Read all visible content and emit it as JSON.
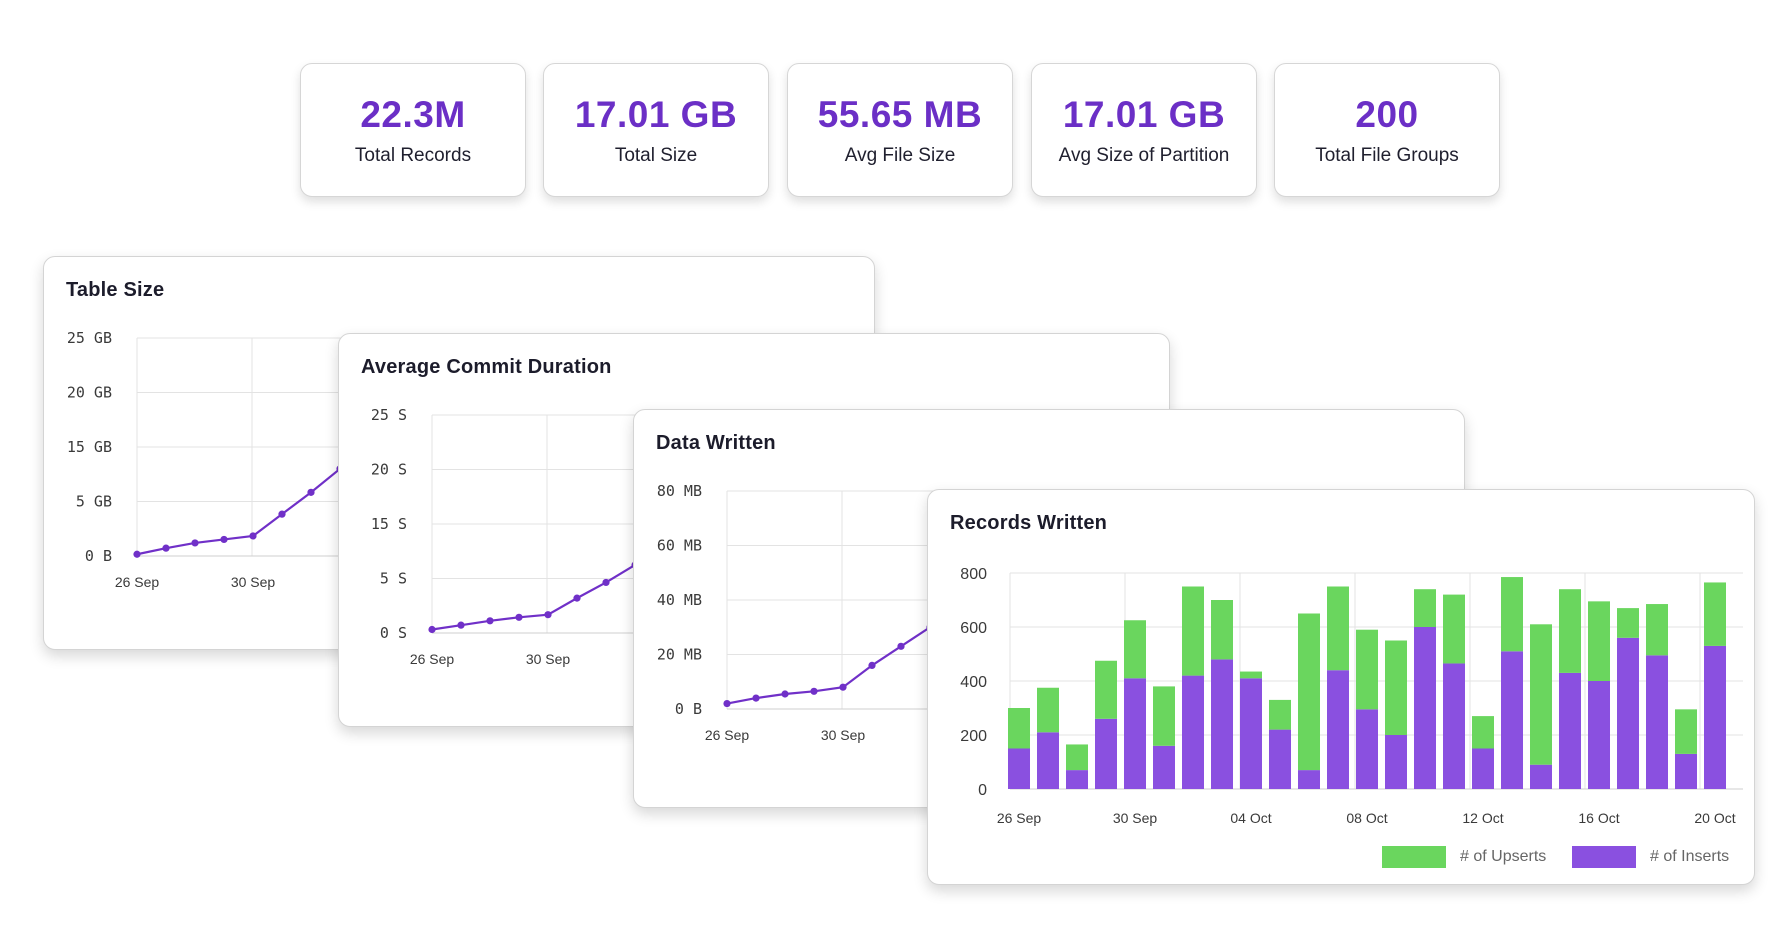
{
  "stats": [
    {
      "value": "22.3M",
      "label": "Total Records"
    },
    {
      "value": "17.01 GB",
      "label": "Total Size"
    },
    {
      "value": "55.65 MB",
      "label": "Avg File Size"
    },
    {
      "value": "17.01 GB",
      "label": "Avg Size of Partition"
    },
    {
      "value": "200",
      "label": "Total File Groups"
    }
  ],
  "colors": {
    "accent": "#6b2fc6",
    "line": "#7030c8",
    "upserts": "#6ad65e",
    "inserts": "#8a50e0"
  },
  "chart_data": [
    {
      "type": "line",
      "title": "Table Size",
      "y_ticks": [
        "0 B",
        "5 GB",
        "15 GB",
        "20 GB",
        "25 GB"
      ],
      "x_ticks": [
        "26 Sep",
        "30 Sep"
      ],
      "x": [
        "26 Sep",
        "27 Sep",
        "28 Sep",
        "29 Sep",
        "30 Sep",
        "01 Oct",
        "02 Oct",
        "03 Oct"
      ],
      "values": [
        0.2,
        0.9,
        1.5,
        1.9,
        2.3,
        4.8,
        7.3,
        10.0
      ],
      "ylim": [
        0,
        25
      ],
      "grid": true
    },
    {
      "type": "line",
      "title": "Average Commit Duration",
      "y_ticks": [
        "0 S",
        "5 S",
        "15 S",
        "20 S",
        "25 S"
      ],
      "x_ticks": [
        "26 Sep",
        "30 Sep"
      ],
      "x": [
        "26 Sep",
        "27 Sep",
        "28 Sep",
        "29 Sep",
        "30 Sep",
        "01 Oct",
        "02 Oct",
        "03 Oct"
      ],
      "values": [
        0.4,
        0.9,
        1.4,
        1.8,
        2.1,
        4.0,
        5.8,
        7.8
      ],
      "ylim": [
        0,
        25
      ],
      "grid": true
    },
    {
      "type": "line",
      "title": "Data Written",
      "y_ticks": [
        "0 B",
        "20 MB",
        "40 MB",
        "60 MB",
        "80 MB"
      ],
      "x_ticks": [
        "26 Sep",
        "30 Sep"
      ],
      "x": [
        "26 Sep",
        "27 Sep",
        "28 Sep",
        "29 Sep",
        "30 Sep",
        "01 Oct",
        "02 Oct",
        "03 Oct"
      ],
      "values": [
        2,
        4,
        5.5,
        6.5,
        8,
        16,
        23,
        30
      ],
      "ylim": [
        0,
        80
      ],
      "grid": true
    },
    {
      "type": "bar",
      "stacked": true,
      "title": "Records Written",
      "categories": [
        "26 Sep",
        "27 Sep",
        "28 Sep",
        "29 Sep",
        "30 Sep",
        "01 Oct",
        "02 Oct",
        "03 Oct",
        "04 Oct",
        "05 Oct",
        "06 Oct",
        "07 Oct",
        "08 Oct",
        "09 Oct",
        "10 Oct",
        "11 Oct",
        "12 Oct",
        "13 Oct",
        "14 Oct",
        "15 Oct",
        "16 Oct",
        "17 Oct",
        "18 Oct",
        "19 Oct",
        "20 Oct"
      ],
      "x_ticks": [
        "26 Sep",
        "30 Sep",
        "04 Oct",
        "08 Oct",
        "12 Oct",
        "16 Oct",
        "20 Oct"
      ],
      "y_ticks": [
        "0",
        "200",
        "400",
        "600",
        "800"
      ],
      "ylim": [
        0,
        800
      ],
      "series": [
        {
          "name": "# of Inserts",
          "values": [
            150,
            210,
            70,
            260,
            410,
            160,
            420,
            480,
            410,
            220,
            70,
            440,
            295,
            200,
            600,
            465,
            150,
            510,
            90,
            430,
            400,
            560,
            495,
            130,
            530
          ]
        },
        {
          "name": "# of Upserts",
          "values": [
            150,
            165,
            95,
            215,
            215,
            220,
            330,
            220,
            25,
            110,
            580,
            310,
            295,
            350,
            140,
            255,
            120,
            275,
            520,
            310,
            295,
            110,
            190,
            165,
            235
          ]
        }
      ],
      "legend_position": "bottom-right",
      "grid": true
    }
  ]
}
